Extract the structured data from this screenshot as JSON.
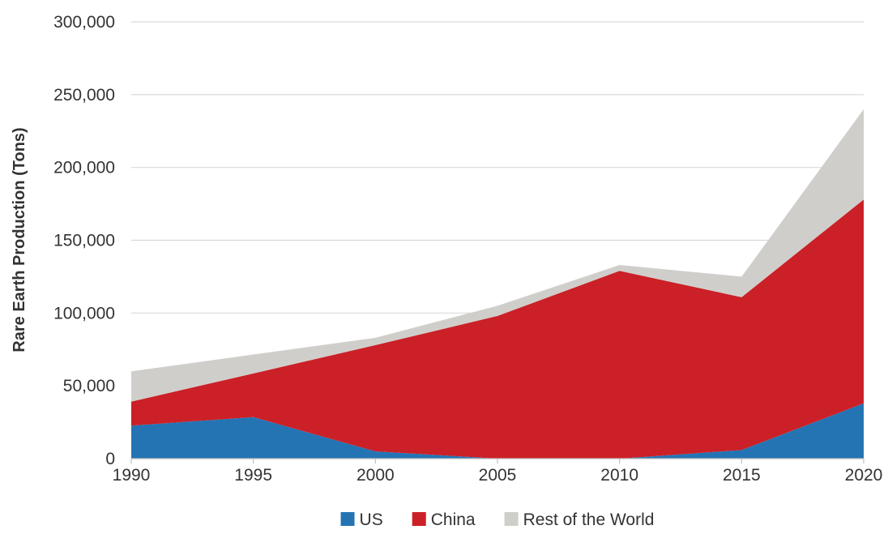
{
  "chart_data": {
    "type": "area",
    "stacked": true,
    "title": "",
    "xlabel": "",
    "ylabel": "Rare Earth Production (Tons)",
    "x": [
      1990,
      1995,
      2000,
      2005,
      2010,
      2015,
      2020
    ],
    "ylim": [
      0,
      300000
    ],
    "yticks": [
      0,
      50000,
      100000,
      150000,
      200000,
      250000,
      300000
    ],
    "ytick_labels": [
      "0",
      "50,000",
      "100,000",
      "150,000",
      "200,000",
      "250,000",
      "300,000"
    ],
    "xtick_labels": [
      "1990",
      "1995",
      "2000",
      "2005",
      "2010",
      "2015",
      "2020"
    ],
    "grid": "horizontal",
    "legend": "bottom-center",
    "series": [
      {
        "name": "US",
        "color": "#2474b4",
        "values": [
          22700,
          28500,
          5000,
          0,
          0,
          5900,
          38000
        ]
      },
      {
        "name": "China",
        "color": "#cb2027",
        "values": [
          16500,
          30000,
          73000,
          98000,
          129000,
          105000,
          140000
        ]
      },
      {
        "name": "Rest of the World",
        "color": "#d0cecb",
        "values": [
          20800,
          13000,
          5000,
          7000,
          4000,
          14100,
          62000
        ]
      }
    ]
  }
}
